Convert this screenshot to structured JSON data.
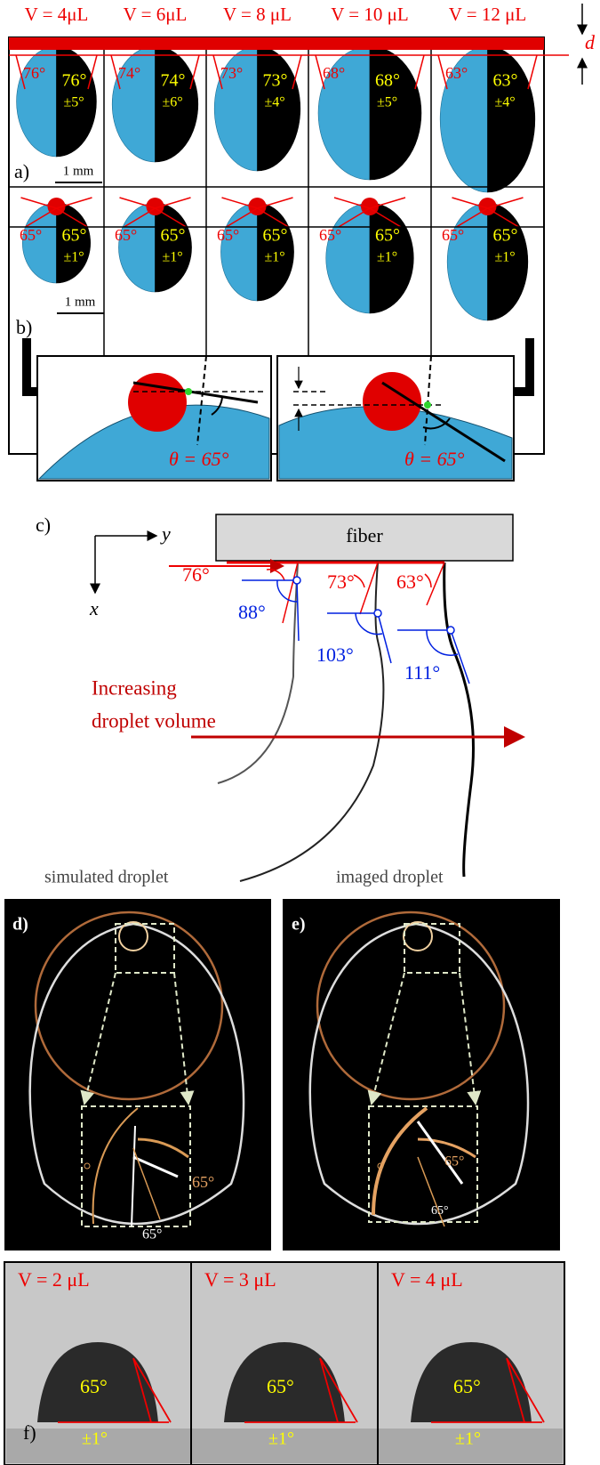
{
  "top": {
    "volumes": [
      "V = 4μL",
      "V = 6μL",
      "V = 8 μL",
      "V = 10 μL",
      "V = 12 μL"
    ],
    "d_label": "d"
  },
  "panel_a": {
    "label": "a)",
    "scale_bar": "1 mm",
    "columns": [
      {
        "left_angle": "76°",
        "right_angle": "76°",
        "error": "±5°"
      },
      {
        "left_angle": "74°",
        "right_angle": "74°",
        "error": "±6°"
      },
      {
        "left_angle": "73°",
        "right_angle": "73°",
        "error": "±4°"
      },
      {
        "left_angle": "68°",
        "right_angle": "68°",
        "error": "±5°"
      },
      {
        "left_angle": "63°",
        "right_angle": "63°",
        "error": "±4°"
      }
    ]
  },
  "panel_b": {
    "label": "b)",
    "scale_bar": "1 mm",
    "columns": [
      {
        "left_angle": "65°",
        "right_angle": "65°",
        "error": "±1°"
      },
      {
        "left_angle": "65°",
        "right_angle": "65°",
        "error": "±1°"
      },
      {
        "left_angle": "65°",
        "right_angle": "65°",
        "error": "±1°"
      },
      {
        "left_angle": "65°",
        "right_angle": "65°",
        "error": "±1°"
      },
      {
        "left_angle": "65°",
        "right_angle": "65°",
        "error": "±1°"
      }
    ],
    "insets": [
      "θ = 65°",
      "θ = 65°"
    ]
  },
  "panel_c": {
    "label": "c)",
    "axis_y": "y",
    "axis_x": "x",
    "fiber": "fiber",
    "red_angles": [
      "76°",
      "73°",
      "63°"
    ],
    "blue_angles": [
      "88°",
      "103°",
      "111°"
    ],
    "arrow_text": [
      "Increasing",
      "droplet volume"
    ],
    "legend": [
      "simulated droplet",
      "imaged droplet"
    ]
  },
  "panel_d": {
    "label": "d)",
    "angles": [
      "65°",
      "65°"
    ]
  },
  "panel_e": {
    "label": "e)",
    "angles": [
      "65°",
      "65°"
    ]
  },
  "panel_f": {
    "label": "f)",
    "columns": [
      {
        "volume": "V = 2 μL",
        "angle": "65°",
        "error": "±1°"
      },
      {
        "volume": "V = 3 μL",
        "angle": "65°",
        "error": "±1°"
      },
      {
        "volume": "V = 4 μL",
        "angle": "65°",
        "error": "±1°"
      }
    ]
  }
}
